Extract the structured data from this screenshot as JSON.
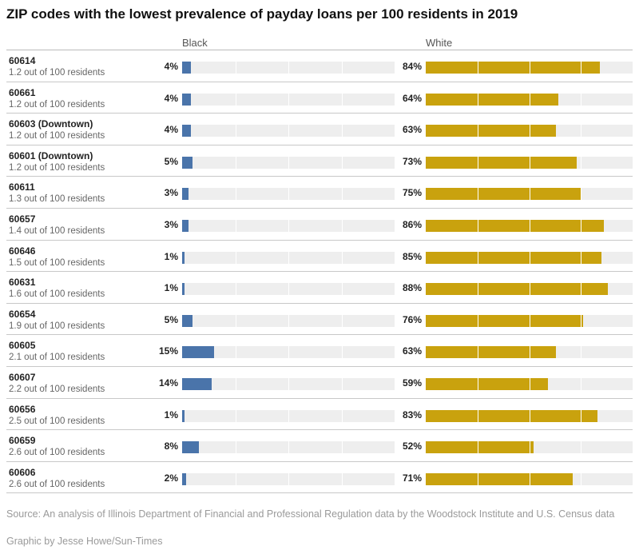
{
  "title": "ZIP codes with the lowest prevalence of payday loans per 100 residents in 2019",
  "columns": {
    "black": "Black",
    "white": "White"
  },
  "colors": {
    "black": "#4a74aa",
    "white": "#c9a20e",
    "track": "#eeeeee"
  },
  "footer": {
    "source": "Source: An analysis of Illinois Department of Financial and Professional Regulation data by the Woodstock Institute and U.S. Census data",
    "credit": "Graphic by Jesse Howe/Sun-Times"
  },
  "chart_data": {
    "type": "bar",
    "title": "ZIP codes with the lowest prevalence of payday loans per 100 residents in 2019",
    "xlim": [
      0,
      100
    ],
    "grid": true,
    "categories": [
      "60614",
      "60661",
      "60603 (Downtown)",
      "60601 (Downtown)",
      "60611",
      "60657",
      "60646",
      "60631",
      "60654",
      "60605",
      "60607",
      "60656",
      "60659",
      "60606"
    ],
    "rates": [
      "1.2 out of 100 residents",
      "1.2 out of 100 residents",
      "1.2 out of 100 residents",
      "1.2 out of 100 residents",
      "1.3 out of 100 residents",
      "1.4 out of 100 residents",
      "1.5 out of 100 residents",
      "1.6 out of 100 residents",
      "1.9 out of 100 residents",
      "2.1 out of 100 residents",
      "2.2 out of 100 residents",
      "2.5 out of 100 residents",
      "2.6 out of 100 residents",
      "2.6 out of 100 residents"
    ],
    "series": [
      {
        "name": "Black",
        "values": [
          4,
          4,
          4,
          5,
          3,
          3,
          1,
          1,
          5,
          15,
          14,
          1,
          8,
          2
        ]
      },
      {
        "name": "White",
        "values": [
          84,
          64,
          63,
          73,
          75,
          86,
          85,
          88,
          76,
          63,
          59,
          83,
          52,
          71
        ]
      }
    ]
  }
}
